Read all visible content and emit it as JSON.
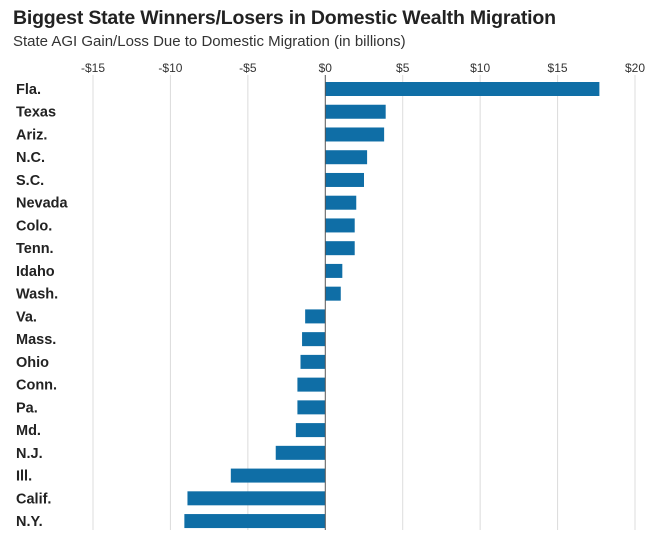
{
  "chart_data": {
    "type": "bar",
    "orientation": "horizontal",
    "title": "Biggest State Winners/Losers in Domestic Wealth Migration",
    "subtitle": "State AGI Gain/Loss Due to Domestic Migration (in billions)",
    "xlim": [
      -15,
      20
    ],
    "ticks": [
      -15,
      -10,
      -5,
      0,
      5,
      10,
      15,
      20
    ],
    "tick_labels": [
      "-$15",
      "-$10",
      "-$5",
      "$0",
      "$5",
      "$10",
      "$15",
      "$20"
    ],
    "categories": [
      "Fla.",
      "Texas",
      "Ariz.",
      "N.C.",
      "S.C.",
      "Nevada",
      "Colo.",
      "Tenn.",
      "Idaho",
      "Wash.",
      "Va.",
      "Mass.",
      "Ohio",
      "Conn.",
      "Pa.",
      "Md.",
      "N.J.",
      "Ill.",
      "Calif.",
      "N.Y."
    ],
    "values": [
      17.7,
      3.9,
      3.8,
      2.7,
      2.5,
      2.0,
      1.9,
      1.9,
      1.1,
      1.0,
      -1.3,
      -1.5,
      -1.6,
      -1.8,
      -1.8,
      -1.9,
      -3.2,
      -6.1,
      -8.9,
      -9.1
    ],
    "grid": "vertical",
    "colors": {
      "bar": "#0f6ea6",
      "grid": "#dcdcdc",
      "zero_line": "#555555"
    }
  }
}
